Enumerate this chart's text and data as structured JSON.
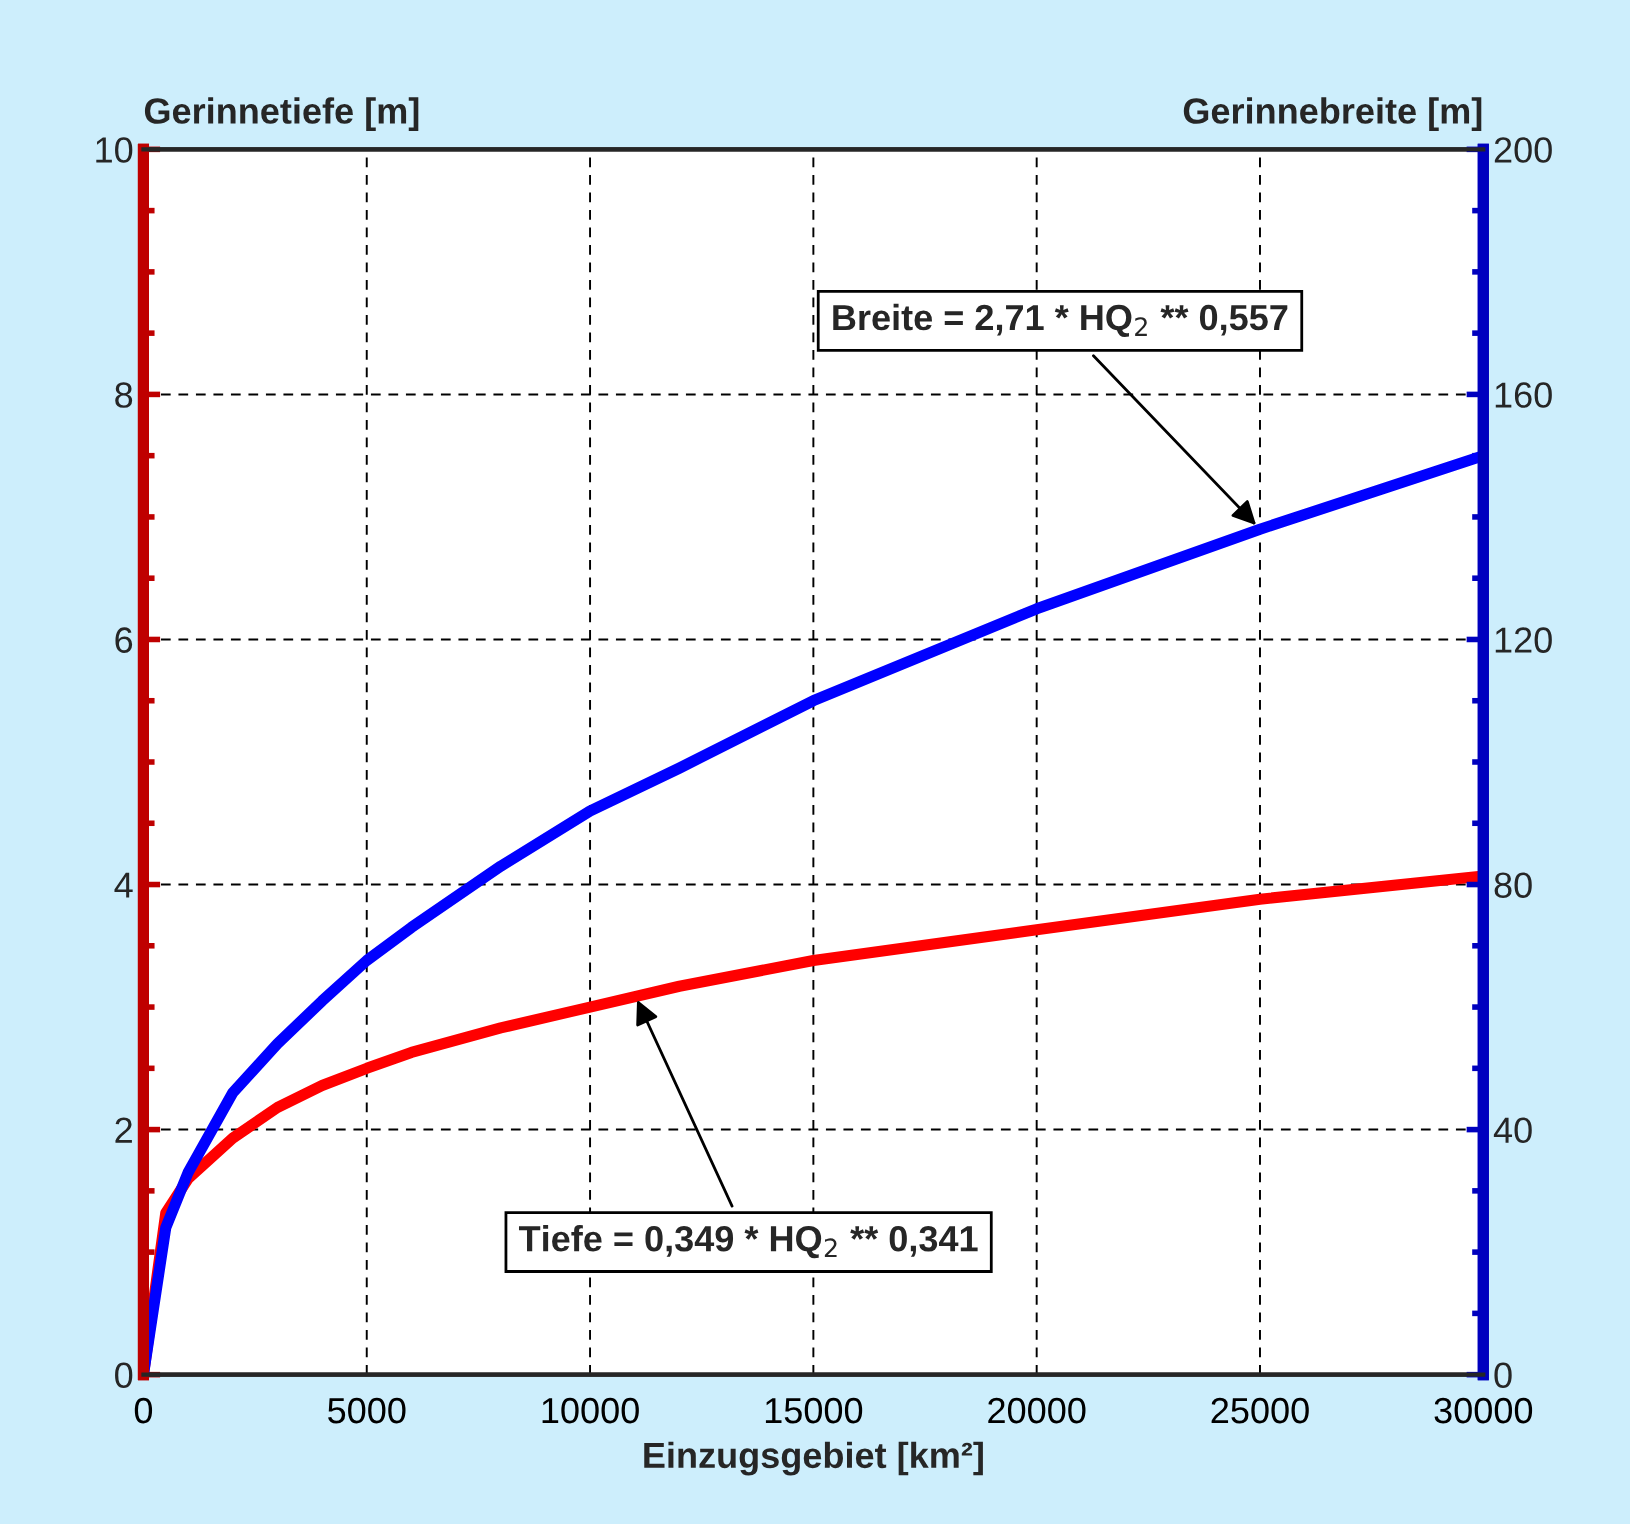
{
  "chart_data": {
    "type": "line",
    "xlabel": "Einzugsgebiet [km²]",
    "ylabel": "Gerinnetiefe [m]",
    "y2label": "Gerinnebreite [m]",
    "x": [
      0,
      500,
      1000,
      2000,
      3000,
      4000,
      5000,
      6000,
      8000,
      10000,
      12000,
      15000,
      20000,
      25000,
      30000
    ],
    "series": [
      {
        "color": "#ff0000",
        "values": [
          0,
          1.32,
          1.6,
          1.93,
          2.18,
          2.36,
          2.5,
          2.63,
          2.83,
          3.0,
          3.17,
          3.38,
          3.63,
          3.88,
          4.07
        ]
      },
      {
        "color": "#0000ff",
        "axis": "y2",
        "values": [
          0,
          24,
          33,
          46,
          54,
          61,
          67.6,
          73,
          83,
          92,
          99,
          110,
          125,
          138,
          150
        ]
      }
    ],
    "xlim": [
      0,
      30000
    ],
    "xticks": [
      0,
      5000,
      10000,
      15000,
      20000,
      25000,
      30000
    ],
    "ylim": [
      0,
      10
    ],
    "yticks": [
      0,
      2,
      4,
      6,
      8,
      10
    ],
    "y2lim": [
      0,
      200
    ],
    "y2ticks": [
      0,
      40,
      80,
      120,
      160,
      200
    ],
    "grid": true,
    "legend": false,
    "marker": "none",
    "line_style": "solid",
    "annotations": [
      {
        "text": "Breite = 2,71 * HQ$_{2}$ ** 0,557",
        "x": 25000,
        "y": 6.9
      },
      {
        "text": "Tiefe = 0,349 * HQ$_{2}$ ** 0,341",
        "x": 11000,
        "y": 3.1
      }
    ]
  }
}
